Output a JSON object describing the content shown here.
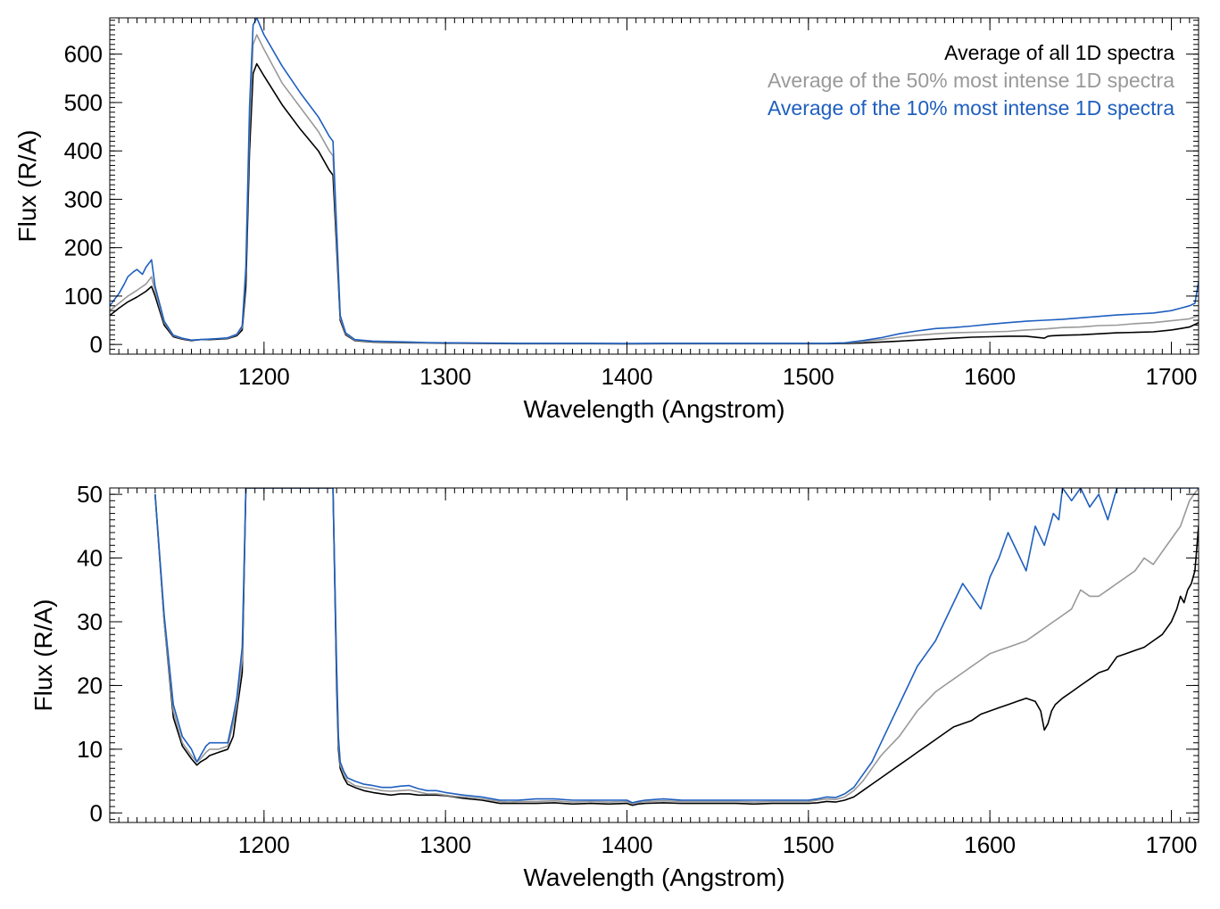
{
  "chart_data": [
    {
      "type": "line",
      "xlabel": "Wavelength (Angstrom)",
      "ylabel": "Flux (R/A)",
      "xlim": [
        1115,
        1715
      ],
      "ylim": [
        -20,
        675
      ],
      "x_ticks": [
        1200,
        1300,
        1400,
        1500,
        1600,
        1700
      ],
      "y_ticks": [
        0,
        100,
        200,
        300,
        400,
        500,
        600
      ],
      "legend": [
        "Average of all 1D spectra",
        "Average of the 50% most intense 1D spectra",
        "Average of the 10% most intense 1D spectra"
      ],
      "legend_position": "top-right",
      "grid": false,
      "series": [
        {
          "name": "Average of all 1D spectra",
          "color": "#000000",
          "x": [
            1115,
            1120,
            1125,
            1130,
            1135,
            1138,
            1140,
            1145,
            1150,
            1155,
            1160,
            1165,
            1170,
            1175,
            1180,
            1185,
            1188,
            1190,
            1192,
            1194,
            1196,
            1200,
            1210,
            1220,
            1230,
            1236,
            1238,
            1240,
            1242,
            1245,
            1250,
            1260,
            1270,
            1280,
            1290,
            1300,
            1320,
            1340,
            1360,
            1380,
            1400,
            1420,
            1440,
            1460,
            1480,
            1500,
            1510,
            1520,
            1530,
            1540,
            1550,
            1560,
            1570,
            1580,
            1590,
            1600,
            1610,
            1620,
            1630,
            1632,
            1634,
            1640,
            1650,
            1660,
            1670,
            1680,
            1690,
            1700,
            1705,
            1710,
            1715
          ],
          "y": [
            60,
            75,
            88,
            98,
            110,
            120,
            100,
            40,
            16,
            11,
            8,
            10,
            10,
            11,
            12,
            18,
            30,
            120,
            400,
            560,
            580,
            555,
            495,
            445,
            400,
            360,
            350,
            200,
            50,
            20,
            8,
            5,
            4,
            3.5,
            3,
            2.5,
            2,
            1.5,
            1.5,
            1.5,
            1.2,
            1.5,
            1.5,
            1.5,
            1.5,
            1.5,
            1.5,
            2,
            3,
            5,
            7,
            9,
            11,
            13,
            15,
            16,
            17,
            17,
            13,
            17,
            18,
            19,
            20,
            22,
            24,
            25,
            26,
            30,
            33,
            36,
            45
          ]
        },
        {
          "name": "Average of the 50% most intense 1D spectra",
          "color": "#999999",
          "x": [
            1115,
            1120,
            1125,
            1130,
            1135,
            1138,
            1140,
            1145,
            1150,
            1155,
            1160,
            1165,
            1170,
            1175,
            1180,
            1185,
            1188,
            1190,
            1192,
            1194,
            1196,
            1200,
            1210,
            1220,
            1230,
            1236,
            1238,
            1240,
            1242,
            1245,
            1250,
            1260,
            1270,
            1280,
            1290,
            1300,
            1320,
            1340,
            1360,
            1380,
            1400,
            1420,
            1440,
            1460,
            1480,
            1500,
            1510,
            1520,
            1530,
            1540,
            1550,
            1560,
            1570,
            1580,
            1590,
            1600,
            1610,
            1620,
            1630,
            1640,
            1650,
            1660,
            1670,
            1680,
            1690,
            1700,
            1705,
            1710,
            1715
          ],
          "y": [
            70,
            85,
            100,
            112,
            125,
            140,
            110,
            45,
            18,
            12,
            9,
            10,
            11,
            12,
            13,
            20,
            35,
            150,
            450,
            620,
            640,
            610,
            540,
            490,
            440,
            400,
            390,
            220,
            55,
            22,
            9,
            6,
            5,
            4,
            3.5,
            3,
            2.5,
            2,
            2,
            2,
            1.8,
            2,
            2,
            2,
            2,
            2,
            2,
            3,
            6,
            10,
            15,
            19,
            22,
            24,
            25,
            26,
            27,
            30,
            32,
            35,
            36,
            39,
            40,
            43,
            45,
            49,
            51,
            53,
            60
          ]
        },
        {
          "name": "Average of the 10% most intense 1D spectra",
          "color": "#1f5fbf",
          "x": [
            1115,
            1118,
            1120,
            1123,
            1125,
            1128,
            1130,
            1133,
            1135,
            1138,
            1140,
            1145,
            1150,
            1155,
            1160,
            1165,
            1170,
            1175,
            1180,
            1185,
            1188,
            1190,
            1192,
            1194,
            1196,
            1200,
            1210,
            1220,
            1230,
            1236,
            1238,
            1240,
            1242,
            1245,
            1250,
            1260,
            1270,
            1280,
            1290,
            1300,
            1320,
            1340,
            1360,
            1380,
            1400,
            1420,
            1440,
            1460,
            1480,
            1500,
            1510,
            1520,
            1530,
            1540,
            1550,
            1560,
            1570,
            1580,
            1590,
            1600,
            1610,
            1620,
            1630,
            1640,
            1650,
            1660,
            1670,
            1680,
            1690,
            1700,
            1705,
            1710,
            1713,
            1715
          ],
          "y": [
            80,
            95,
            105,
            125,
            140,
            150,
            155,
            145,
            160,
            175,
            120,
            48,
            19,
            13,
            9,
            10,
            11,
            12,
            14,
            21,
            38,
            160,
            490,
            660,
            675,
            640,
            575,
            520,
            470,
            430,
            420,
            240,
            60,
            24,
            10,
            7,
            6,
            5,
            4,
            3.5,
            3,
            2.5,
            2.5,
            2.5,
            2,
            2.5,
            2.5,
            2.5,
            2.5,
            2.5,
            2.5,
            3.5,
            8,
            14,
            22,
            28,
            33,
            35,
            38,
            42,
            45,
            48,
            50,
            52,
            55,
            58,
            61,
            63,
            65,
            70,
            75,
            80,
            85,
            130
          ]
        }
      ]
    },
    {
      "type": "line",
      "xlabel": "Wavelength (Angstrom)",
      "ylabel": "Flux (R/A)",
      "xlim": [
        1115,
        1715
      ],
      "ylim": [
        -1.5,
        51
      ],
      "x_ticks": [
        1200,
        1300,
        1400,
        1500,
        1600,
        1700
      ],
      "y_ticks": [
        0,
        10,
        20,
        30,
        40,
        50
      ],
      "grid": false,
      "series": [
        {
          "name": "Average of all 1D spectra",
          "color": "#000000",
          "x": [
            1140,
            1145,
            1150,
            1155,
            1160,
            1163,
            1165,
            1168,
            1170,
            1175,
            1180,
            1183,
            1185,
            1188,
            1190,
            1238,
            1240,
            1241,
            1242,
            1244,
            1246,
            1250,
            1255,
            1260,
            1265,
            1270,
            1275,
            1280,
            1285,
            1290,
            1295,
            1300,
            1305,
            1310,
            1320,
            1330,
            1335,
            1340,
            1350,
            1360,
            1370,
            1380,
            1390,
            1400,
            1403,
            1406,
            1410,
            1420,
            1430,
            1440,
            1450,
            1460,
            1470,
            1480,
            1490,
            1500,
            1505,
            1510,
            1515,
            1520,
            1525,
            1530,
            1535,
            1540,
            1545,
            1550,
            1555,
            1560,
            1565,
            1570,
            1575,
            1580,
            1585,
            1590,
            1595,
            1600,
            1605,
            1610,
            1615,
            1620,
            1625,
            1628,
            1630,
            1632,
            1634,
            1636,
            1640,
            1645,
            1650,
            1655,
            1660,
            1665,
            1670,
            1675,
            1680,
            1685,
            1690,
            1695,
            1700,
            1703,
            1705,
            1707,
            1709,
            1711,
            1713,
            1715
          ],
          "y": [
            50,
            30,
            15,
            10.5,
            8.5,
            7.5,
            8,
            8.5,
            9,
            9.5,
            10,
            12,
            16,
            22,
            51,
            51,
            20,
            10,
            7,
            5.5,
            4.5,
            4,
            3.5,
            3.2,
            3,
            2.8,
            3,
            3,
            2.8,
            2.8,
            2.8,
            2.7,
            2.5,
            2.3,
            2,
            1.5,
            1.5,
            1.5,
            1.5,
            1.6,
            1.4,
            1.5,
            1.4,
            1.5,
            1.2,
            1.4,
            1.5,
            1.6,
            1.5,
            1.5,
            1.5,
            1.5,
            1.4,
            1.5,
            1.5,
            1.5,
            1.6,
            1.8,
            1.7,
            2,
            2.5,
            3.5,
            4.5,
            5.5,
            6.5,
            7.5,
            8.5,
            9.5,
            10.5,
            11.5,
            12.5,
            13.5,
            14,
            14.5,
            15.5,
            16,
            16.5,
            17,
            17.5,
            18,
            17.5,
            16,
            13,
            14,
            16,
            17,
            18,
            19,
            20,
            21,
            22,
            22.5,
            24.5,
            25,
            25.5,
            26,
            27,
            28,
            30,
            32,
            34,
            33,
            35,
            36,
            38,
            45
          ]
        },
        {
          "name": "Average of the 50% most intense 1D spectra",
          "color": "#999999",
          "x": [
            1140,
            1145,
            1150,
            1155,
            1160,
            1163,
            1165,
            1168,
            1170,
            1175,
            1180,
            1183,
            1185,
            1188,
            1190,
            1238,
            1240,
            1241,
            1242,
            1244,
            1246,
            1250,
            1255,
            1260,
            1265,
            1270,
            1275,
            1280,
            1285,
            1290,
            1295,
            1300,
            1305,
            1310,
            1320,
            1330,
            1335,
            1340,
            1350,
            1360,
            1370,
            1380,
            1390,
            1400,
            1403,
            1406,
            1410,
            1420,
            1430,
            1440,
            1450,
            1460,
            1470,
            1480,
            1490,
            1500,
            1505,
            1510,
            1515,
            1520,
            1525,
            1530,
            1535,
            1540,
            1545,
            1550,
            1555,
            1560,
            1565,
            1570,
            1575,
            1580,
            1585,
            1590,
            1595,
            1600,
            1605,
            1610,
            1615,
            1620,
            1625,
            1630,
            1635,
            1640,
            1645,
            1650,
            1655,
            1660,
            1665,
            1670,
            1675,
            1680,
            1685,
            1690,
            1695,
            1700,
            1705,
            1710,
            1715
          ],
          "y": [
            50,
            30,
            16,
            11,
            9,
            8,
            8.5,
            9.5,
            10,
            10,
            10.5,
            14,
            17,
            24,
            51,
            51,
            22,
            11,
            7.5,
            6,
            5,
            4.3,
            4,
            3.8,
            3.5,
            3.4,
            3.5,
            3.6,
            3.3,
            3,
            3,
            2.8,
            2.6,
            2.5,
            2.2,
            1.8,
            1.7,
            1.8,
            1.8,
            1.9,
            1.7,
            1.8,
            1.7,
            1.8,
            1.4,
            1.6,
            1.8,
            1.9,
            1.8,
            1.8,
            1.8,
            1.8,
            1.7,
            1.8,
            1.8,
            1.8,
            2,
            2.2,
            2.1,
            2.5,
            3.5,
            5,
            7,
            9,
            10.5,
            12,
            14,
            16,
            17.5,
            19,
            20,
            21,
            22,
            23,
            24,
            25,
            25.5,
            26,
            26.5,
            27,
            28,
            29,
            30,
            31,
            32,
            35,
            34,
            34,
            35,
            36,
            37,
            38,
            40,
            39,
            41,
            43,
            45,
            49,
            51
          ]
        },
        {
          "name": "Average of the 10% most intense 1D spectra",
          "color": "#1f5fbf",
          "x": [
            1140,
            1145,
            1150,
            1155,
            1160,
            1163,
            1165,
            1168,
            1170,
            1175,
            1180,
            1183,
            1185,
            1188,
            1190,
            1238,
            1240,
            1241,
            1242,
            1244,
            1246,
            1250,
            1255,
            1260,
            1265,
            1270,
            1275,
            1280,
            1285,
            1290,
            1295,
            1300,
            1305,
            1310,
            1320,
            1330,
            1335,
            1340,
            1350,
            1360,
            1370,
            1380,
            1390,
            1400,
            1403,
            1406,
            1410,
            1420,
            1430,
            1440,
            1450,
            1460,
            1470,
            1480,
            1490,
            1500,
            1505,
            1510,
            1515,
            1520,
            1525,
            1530,
            1535,
            1540,
            1545,
            1550,
            1555,
            1560,
            1565,
            1570,
            1575,
            1580,
            1585,
            1590,
            1595,
            1600,
            1605,
            1610,
            1615,
            1620,
            1625,
            1630,
            1635,
            1638,
            1640,
            1645,
            1650,
            1655,
            1660,
            1665,
            1670,
            1675,
            1680,
            1690,
            1700,
            1710,
            1715
          ],
          "y": [
            50,
            31,
            17,
            12,
            10,
            8,
            9,
            10.5,
            11,
            11,
            11,
            15,
            18,
            26,
            51,
            51,
            23,
            12,
            8,
            6.5,
            5.5,
            5,
            4.5,
            4.3,
            4,
            4,
            4.2,
            4.3,
            3.8,
            3.5,
            3.5,
            3.2,
            3,
            2.8,
            2.5,
            2,
            2,
            2,
            2.2,
            2.2,
            2,
            2,
            2,
            2,
            1.6,
            1.8,
            2,
            2.2,
            2,
            2,
            2,
            2,
            2,
            2,
            2,
            2,
            2.2,
            2.5,
            2.4,
            3,
            4,
            6,
            8,
            11,
            14,
            17,
            20,
            23,
            25,
            27,
            30,
            33,
            36,
            34,
            32,
            37,
            40,
            44,
            41,
            38,
            45,
            42,
            47,
            46,
            51,
            49,
            51,
            48,
            50,
            46,
            51,
            51,
            51,
            51,
            51,
            51,
            51
          ]
        }
      ]
    }
  ]
}
